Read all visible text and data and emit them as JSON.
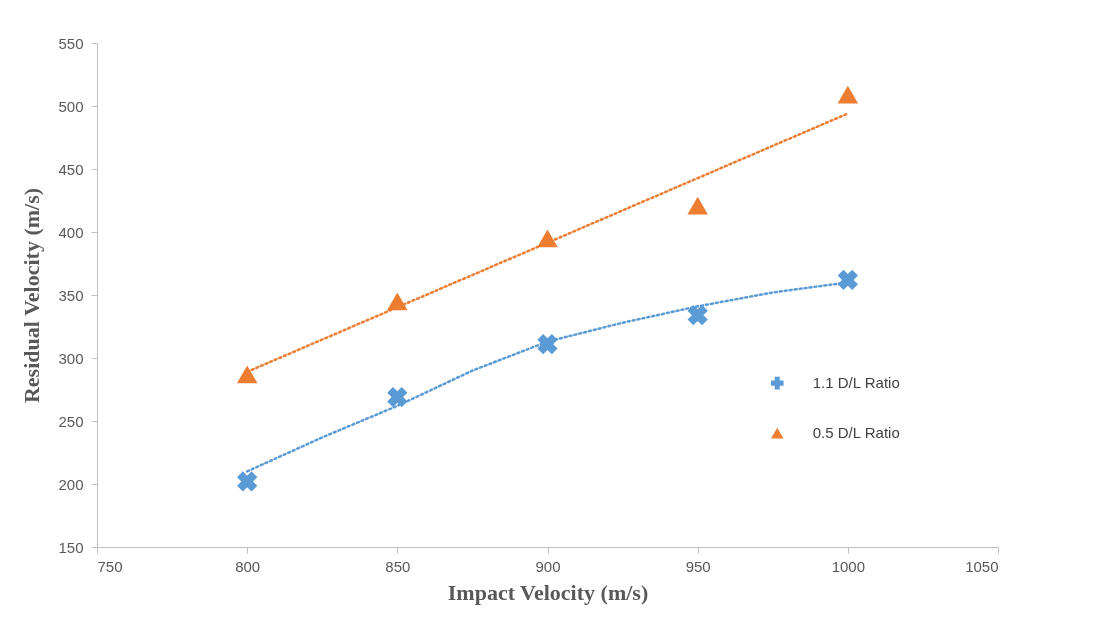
{
  "chart_data": {
    "type": "scatter",
    "xlabel": "Impact  Velocity (m/s)",
    "ylabel": "Residual Velocity (m/s)",
    "xlim": [
      750,
      1050
    ],
    "xticks": [
      750,
      800,
      850,
      900,
      950,
      1000,
      1050
    ],
    "ylim": [
      150,
      550
    ],
    "yticks": [
      150,
      200,
      250,
      300,
      350,
      400,
      450,
      500,
      550
    ],
    "grid": false,
    "legend": "right",
    "series": [
      {
        "name": "1.1 D/L Ratio",
        "color": "#5b9bd5",
        "marker": "cross",
        "x": [
          800,
          850,
          900,
          950,
          1000
        ],
        "values": [
          202,
          269,
          311,
          334,
          362
        ]
      },
      {
        "name": "0.5 D/L Ratio",
        "color": "#ed7d31",
        "marker": "triangle",
        "x": [
          800,
          850,
          900,
          950,
          1000
        ],
        "values": [
          287,
          345,
          395,
          421,
          509
        ]
      },
      {
        "type": "line",
        "color": "#5b9bd5",
        "marker": "none",
        "line_style": "dotted",
        "x": [
          800,
          825,
          850,
          875,
          900,
          925,
          950,
          975,
          1000
        ],
        "values": [
          210,
          237,
          262,
          290,
          313,
          328,
          341,
          352,
          360
        ]
      },
      {
        "type": "line",
        "color": "#ed7d31",
        "marker": "none",
        "line_style": "dotted",
        "x": [
          800,
          1000
        ],
        "values": [
          289,
          494
        ]
      }
    ]
  }
}
